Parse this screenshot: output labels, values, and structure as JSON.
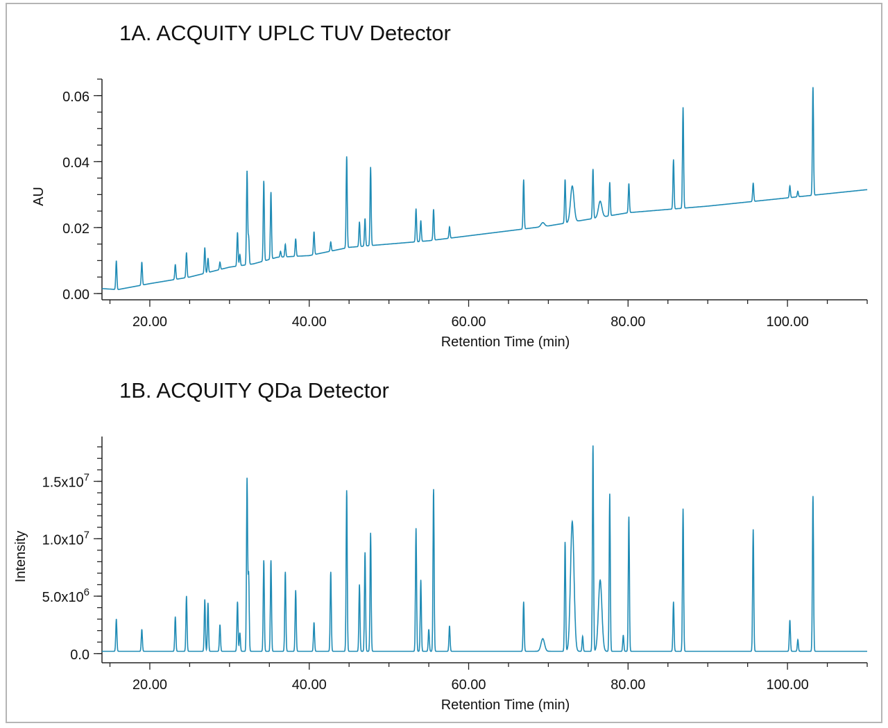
{
  "chart_data": [
    {
      "type": "line",
      "title": "1A. ACQUITY UPLC TUV Detector",
      "xlabel": "Retention Time (min)",
      "ylabel": "AU",
      "xlim": [
        14,
        110
      ],
      "ylim": [
        -0.0019,
        0.065
      ],
      "xticks": [
        20,
        40,
        60,
        80,
        100
      ],
      "xtick_labels": [
        "20.00",
        "40.00",
        "60.00",
        "80.00",
        "100.00"
      ],
      "yticks": [
        0,
        0.02,
        0.04,
        0.06
      ],
      "ytick_labels": [
        "0.00",
        "0.02",
        "0.04",
        "0.06"
      ],
      "grid": false,
      "color": "#1f8bb5",
      "baseline": [
        [
          14,
          0.0015
        ],
        [
          16,
          0.0012
        ],
        [
          20,
          0.003
        ],
        [
          25,
          0.005
        ],
        [
          30,
          0.008
        ],
        [
          33,
          0.009
        ],
        [
          36,
          0.011
        ],
        [
          40,
          0.0115
        ],
        [
          45,
          0.014
        ],
        [
          50,
          0.015
        ],
        [
          55,
          0.016
        ],
        [
          60,
          0.0175
        ],
        [
          70,
          0.0205
        ],
        [
          80,
          0.0245
        ],
        [
          90,
          0.0265
        ],
        [
          100,
          0.029
        ],
        [
          110,
          0.0315
        ]
      ],
      "peaks": [
        [
          15.8,
          0.0099
        ],
        [
          19.0,
          0.0095
        ],
        [
          23.2,
          0.0088
        ],
        [
          24.6,
          0.0124
        ],
        [
          26.9,
          0.0139
        ],
        [
          27.3,
          0.0107
        ],
        [
          28.8,
          0.0095
        ],
        [
          31.0,
          0.0185
        ],
        [
          31.3,
          0.0118
        ],
        [
          32.2,
          0.0371
        ],
        [
          32.4,
          0.0171
        ],
        [
          34.3,
          0.0341
        ],
        [
          35.2,
          0.0307
        ],
        [
          36.4,
          0.0128
        ],
        [
          37.0,
          0.0149
        ],
        [
          38.3,
          0.0166
        ],
        [
          40.6,
          0.0187
        ],
        [
          42.7,
          0.0156
        ],
        [
          44.7,
          0.0415
        ],
        [
          46.3,
          0.0217
        ],
        [
          47.0,
          0.0227
        ],
        [
          47.7,
          0.0383
        ],
        [
          53.4,
          0.0257
        ],
        [
          54.0,
          0.0221
        ],
        [
          55.6,
          0.0255
        ],
        [
          57.6,
          0.0202
        ],
        [
          66.9,
          0.0345
        ],
        [
          69.3,
          0.0215
        ],
        [
          72.1,
          0.0345
        ],
        [
          73.0,
          0.0326
        ],
        [
          75.6,
          0.0377
        ],
        [
          76.5,
          0.028
        ],
        [
          77.7,
          0.0337
        ],
        [
          80.1,
          0.0333
        ],
        [
          85.7,
          0.0406
        ],
        [
          86.9,
          0.0564
        ],
        [
          95.7,
          0.0335
        ],
        [
          100.3,
          0.0326
        ],
        [
          101.3,
          0.031
        ],
        [
          103.2,
          0.0625
        ]
      ]
    },
    {
      "type": "line",
      "title": "1B. ACQUITY QDa Detector",
      "xlabel": "Retention Time (min)",
      "ylabel": "Intensity",
      "xlim": [
        14,
        110
      ],
      "ylim": [
        -800000,
        18900000
      ],
      "xticks": [
        20,
        40,
        60,
        80,
        100
      ],
      "xtick_labels": [
        "20.00",
        "40.00",
        "60.00",
        "80.00",
        "100.00"
      ],
      "yticks": [
        0,
        5000000,
        10000000,
        15000000
      ],
      "ytick_labels": [
        [
          "0.0",
          ""
        ],
        [
          "5.0x10",
          "6"
        ],
        [
          "1.0x10",
          "7"
        ],
        [
          "1.5x10",
          "7"
        ]
      ],
      "grid": false,
      "color": "#1f8bb5",
      "baseline": [
        [
          14,
          200000
        ],
        [
          110,
          200000
        ]
      ],
      "peaks": [
        [
          15.8,
          3000000.0
        ],
        [
          19.0,
          2100000.0
        ],
        [
          23.2,
          3200000.0
        ],
        [
          24.6,
          5000000.0
        ],
        [
          26.9,
          4700000.0
        ],
        [
          27.3,
          4400000.0
        ],
        [
          28.8,
          2500000.0
        ],
        [
          31.0,
          4500000.0
        ],
        [
          31.3,
          1800000.0
        ],
        [
          32.2,
          15200000.0
        ],
        [
          32.4,
          6900000.0
        ],
        [
          34.3,
          8100000.0
        ],
        [
          35.2,
          8100000.0
        ],
        [
          37.0,
          7100000.0
        ],
        [
          38.3,
          5500000.0
        ],
        [
          40.6,
          2700000.0
        ],
        [
          42.7,
          7100000.0
        ],
        [
          44.7,
          14200000.0
        ],
        [
          46.3,
          6000000.0
        ],
        [
          47.0,
          8800000.0
        ],
        [
          47.7,
          10500000.0
        ],
        [
          53.4,
          10900000.0
        ],
        [
          54.0,
          6400000.0
        ],
        [
          55.0,
          2100000.0
        ],
        [
          55.6,
          14300000.0
        ],
        [
          57.6,
          2400000.0
        ],
        [
          66.9,
          4500000.0
        ],
        [
          69.3,
          1300000.0
        ],
        [
          72.1,
          9700000.0
        ],
        [
          73.0,
          11500000.0
        ],
        [
          74.3,
          1500000.0
        ],
        [
          75.6,
          18100000.0
        ],
        [
          76.5,
          6400000.0
        ],
        [
          77.7,
          13900000.0
        ],
        [
          79.4,
          1600000.0
        ],
        [
          80.1,
          11900000.0
        ],
        [
          85.7,
          4500000.0
        ],
        [
          86.9,
          12600000.0
        ],
        [
          95.7,
          10800000.0
        ],
        [
          100.3,
          2900000.0
        ],
        [
          101.3,
          1200000.0
        ],
        [
          103.2,
          13700000.0
        ]
      ]
    }
  ]
}
